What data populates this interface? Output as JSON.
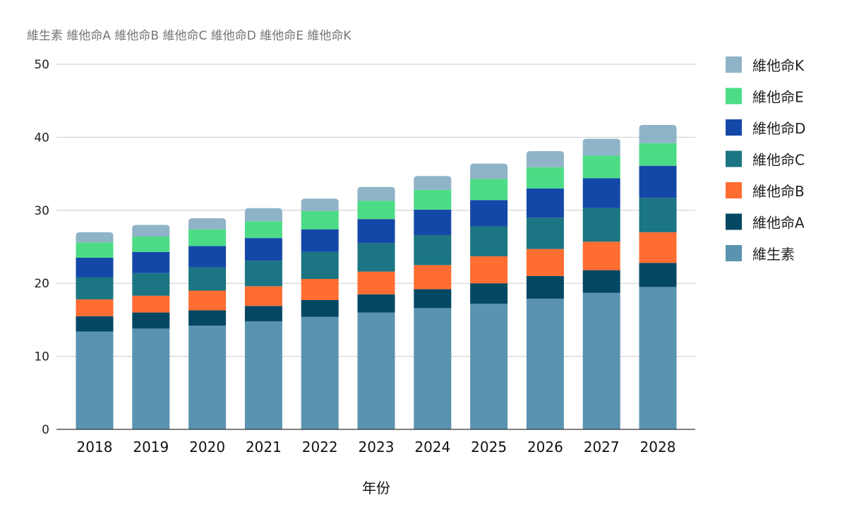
{
  "chart_data": {
    "type": "bar",
    "stacked": true,
    "title": "維生素 維他命A 維他命B 維他命C 維他命D 維他命E 維他命K",
    "xlabel": "年份",
    "ylabel": "",
    "ylim": [
      0,
      50
    ],
    "yticks": [
      0,
      10,
      20,
      30,
      40,
      50
    ],
    "grid": true,
    "legend_position": "right",
    "categories": [
      "2018",
      "2019",
      "2020",
      "2021",
      "2022",
      "2023",
      "2024",
      "2025",
      "2026",
      "2027",
      "2028"
    ],
    "series": [
      {
        "name": "維生素",
        "color": "#5a93b0",
        "values": [
          13.4,
          13.8,
          14.2,
          14.8,
          15.4,
          16.0,
          16.6,
          17.2,
          17.9,
          18.7,
          19.5
        ]
      },
      {
        "name": "維他命A",
        "color": "#034763",
        "values": [
          2.1,
          2.2,
          2.1,
          2.1,
          2.3,
          2.5,
          2.6,
          2.8,
          3.1,
          3.1,
          3.3
        ]
      },
      {
        "name": "維他命B",
        "color": "#ff6d32",
        "values": [
          2.3,
          2.3,
          2.7,
          2.7,
          2.9,
          3.1,
          3.3,
          3.7,
          3.7,
          3.9,
          4.2
        ]
      },
      {
        "name": "維他命C",
        "color": "#1b7582",
        "values": [
          3.0,
          3.1,
          3.2,
          3.5,
          3.7,
          3.9,
          4.1,
          4.1,
          4.3,
          4.6,
          4.7
        ]
      },
      {
        "name": "維他命D",
        "color": "#1448a8",
        "values": [
          2.7,
          2.9,
          2.9,
          3.1,
          3.1,
          3.3,
          3.5,
          3.6,
          4.0,
          4.1,
          4.4
        ]
      },
      {
        "name": "維他命E",
        "color": "#4cdc86",
        "values": [
          2.1,
          2.1,
          2.3,
          2.3,
          2.5,
          2.5,
          2.7,
          2.9,
          2.9,
          3.1,
          3.1
        ]
      },
      {
        "name": "維他命K",
        "color": "#8fb3c7",
        "values": [
          1.4,
          1.6,
          1.5,
          1.8,
          1.7,
          1.9,
          1.9,
          2.1,
          2.2,
          2.3,
          2.5
        ]
      }
    ]
  }
}
